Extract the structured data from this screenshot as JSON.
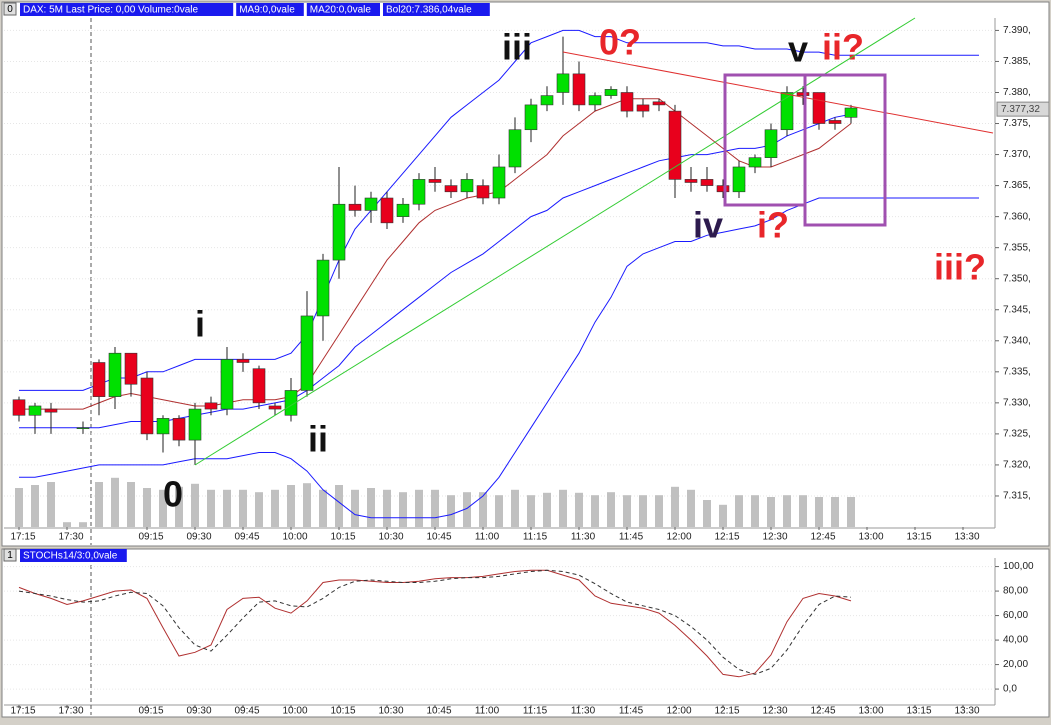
{
  "chart_data": [
    {
      "type": "candlestick",
      "panel_id": "0",
      "header_labels": [
        "DAX: 5M Last Price: 0,00 Volume:0vale",
        "MA9:0,0vale",
        "MA20:0,0vale",
        "Bol20:7.386,04vale"
      ],
      "last_price": {
        "value": 7377.32,
        "label": "7.377,32"
      },
      "categories": [
        "17:15",
        null,
        null,
        "17:30",
        null,
        null,
        null,
        null,
        "09:15",
        null,
        null,
        "09:30",
        null,
        null,
        "09:45",
        null,
        null,
        "10:00",
        null,
        null,
        "10:15",
        null,
        null,
        "10:30",
        null,
        null,
        "10:45",
        null,
        null,
        "11:00",
        null,
        null,
        "11:15",
        null,
        null,
        "11:30",
        null,
        null,
        "11:45",
        null,
        null,
        "12:00",
        null,
        null,
        "12:15",
        null,
        null,
        "12:30",
        null,
        null,
        "12:45",
        null,
        null,
        "13:00",
        null,
        null,
        "13:15",
        null,
        null,
        "13:30",
        null
      ],
      "open": [
        7330.5,
        7328,
        7329,
        null,
        7326,
        7336.5,
        7331,
        7338,
        7334,
        7325,
        7327.5,
        7324,
        7330,
        7329,
        7337,
        7335.5,
        7329.5,
        7328,
        7332,
        7344,
        7353,
        7362,
        7361,
        7363,
        7360,
        7362,
        7366,
        7365,
        7364,
        7365,
        7363,
        7368,
        7374,
        7378,
        7380,
        7383,
        7378,
        7379.5,
        7380,
        7378,
        7378.5,
        7377,
        7366,
        7366,
        7365,
        7364,
        7368,
        7369.5,
        7374,
        7380,
        7380,
        7375.5,
        7376,
        null,
        null,
        null,
        null,
        null,
        null,
        null,
        null
      ],
      "high": [
        7331,
        7330,
        7330,
        null,
        7327,
        7337,
        7339,
        7338,
        7335,
        7328,
        7328,
        7330,
        7331,
        7339,
        7338,
        7336,
        7330,
        7334,
        7348,
        7354,
        7368,
        7365,
        7364,
        7364,
        7363,
        7367,
        7368,
        7366,
        7367,
        7366,
        7370,
        7376,
        7379,
        7381,
        7389,
        7385,
        7380,
        7381,
        7381,
        7379,
        7379,
        7378,
        7368,
        7368,
        7366,
        7369,
        7370,
        7375,
        7381,
        7381,
        7380,
        7376,
        7378,
        null,
        null,
        null,
        null,
        null,
        null,
        null,
        null
      ],
      "low": [
        7327,
        7325,
        7325,
        null,
        7325,
        7328,
        7329,
        7331,
        7324,
        7322,
        7323,
        7320,
        7328,
        7328,
        7335,
        7329,
        7328,
        7327,
        7331,
        7340,
        7350,
        7360,
        7359,
        7358,
        7359,
        7361,
        7364,
        7363,
        7363,
        7362,
        7362,
        7367,
        7372,
        7377,
        7378,
        7377,
        7377,
        7379,
        7376,
        7376,
        7377,
        7363,
        7364,
        7364,
        7363,
        7363,
        7367,
        7368,
        7373,
        7378,
        7374,
        7374,
        7375,
        null,
        null,
        null,
        null,
        null,
        null,
        null,
        null
      ],
      "close": [
        7328,
        7329.5,
        7328.5,
        null,
        7326,
        7331,
        7338,
        7333,
        7325,
        7327.5,
        7324,
        7329,
        7329,
        7337,
        7336.5,
        7330,
        7329,
        7332,
        7344,
        7353,
        7362,
        7361,
        7363,
        7359,
        7362,
        7366,
        7365.5,
        7364,
        7366,
        7363,
        7368,
        7374,
        7378,
        7379.5,
        7383,
        7378,
        7379.5,
        7380.5,
        7377,
        7377,
        7378,
        7366,
        7365.5,
        7365,
        7364,
        7368,
        7369.5,
        7374,
        7380,
        7379.5,
        7375,
        7375,
        7377.5,
        null,
        null,
        null,
        null,
        null,
        null,
        null,
        null
      ],
      "up_color": "#00e000",
      "down_color": "#e8001c",
      "series": [
        {
          "color": "#1a1aff",
          "values": [
            7332,
            7332,
            7332,
            7332,
            7332,
            7333,
            7334,
            7334,
            7335,
            7335,
            7336,
            7337,
            7337,
            7337,
            7337,
            7337,
            7337,
            7338,
            7341,
            7347,
            7353,
            7358,
            7361,
            7364,
            7367,
            7370,
            7373,
            7376,
            7378,
            7380,
            7382,
            7385,
            7388,
            7389,
            7390,
            7390,
            7389,
            7389,
            7388,
            7388,
            7388,
            7388,
            7388,
            7388,
            7387.5,
            7387.5,
            7387,
            7387,
            7387,
            7386.5,
            7386.5,
            7386,
            7386,
            7386,
            7386,
            7386,
            7386,
            7386,
            7386,
            7386,
            7386
          ]
        },
        {
          "color": "#1a1aff",
          "values": [
            7326,
            7326,
            7326,
            7326,
            7326,
            7326,
            7326.5,
            7327,
            7327,
            7327,
            7327.5,
            7328,
            7328.5,
            7329,
            7329,
            7329.5,
            7330,
            7330.5,
            7332,
            7334,
            7336,
            7339,
            7341,
            7343,
            7345,
            7347,
            7349,
            7351,
            7352.5,
            7354,
            7356,
            7358,
            7360,
            7361,
            7363,
            7364,
            7365,
            7366,
            7367,
            7368,
            7369,
            7369.5,
            7370,
            7370,
            7370.5,
            7371,
            7371,
            7371.5,
            7373,
            7374,
            7375,
            7376,
            7376.5,
            null,
            null,
            null,
            null,
            null,
            null,
            null,
            null
          ]
        },
        {
          "color": "#1a1aff",
          "values": [
            7318,
            7318,
            7318.5,
            7319,
            7319.5,
            7320,
            7320,
            7320,
            7320,
            7320,
            7320.5,
            7321,
            7321,
            7321,
            7321.5,
            7322,
            7322,
            7321,
            7319,
            7316,
            7314,
            7312,
            7311.5,
            7311.5,
            7311.5,
            7311.5,
            7311.5,
            7312,
            7313,
            7315,
            7318,
            7322,
            7326,
            7330,
            7334,
            7338,
            7343,
            7347,
            7352,
            7354,
            7355,
            7356,
            7356,
            7357,
            7357.5,
            7358,
            7358.5,
            7359.5,
            7361,
            7362,
            7363,
            7363,
            7363,
            7363,
            7363,
            7363,
            7363,
            7363,
            7363,
            7363,
            7363
          ]
        },
        {
          "color": "#b03030",
          "values": [
            7329,
            7329,
            7329,
            7329,
            7329,
            7330,
            7331,
            7331.5,
            7331,
            7330.5,
            7330,
            7329.5,
            7329.5,
            7330,
            7330.5,
            7330.5,
            7330.5,
            7331,
            7333,
            7337,
            7341,
            7345,
            7349,
            7353,
            7356,
            7359,
            7361,
            7362,
            7363,
            7363.5,
            7364,
            7366,
            7368,
            7370,
            7373,
            7375,
            7377,
            7378,
            7379,
            7379,
            7379,
            7377,
            7375,
            7373,
            7371,
            7369,
            7368,
            7368,
            7369,
            7370,
            7371,
            7373,
            7375,
            null,
            null,
            null,
            null,
            null,
            null,
            null,
            null
          ]
        }
      ],
      "volume": {
        "color": "#c0c0c0",
        "ylim": [
          0,
          100
        ],
        "values": [
          65,
          70,
          75,
          8,
          8,
          75,
          82,
          75,
          65,
          62,
          67,
          72,
          62,
          62,
          62,
          58,
          62,
          70,
          73,
          62,
          70,
          62,
          65,
          62,
          58,
          62,
          62,
          53,
          58,
          58,
          53,
          62,
          53,
          57,
          62,
          57,
          53,
          58,
          53,
          53,
          53,
          67,
          62,
          45,
          37,
          53,
          53,
          50,
          53,
          53,
          50,
          50,
          50,
          null,
          null,
          null,
          null,
          null,
          null,
          null,
          null
        ]
      },
      "ylim": [
        7310,
        7392
      ],
      "yticks": [
        {
          "value": 7390,
          "label": "7.390,"
        },
        {
          "value": 7385,
          "label": "7.385,"
        },
        {
          "value": 7380,
          "label": "7.380,"
        },
        {
          "value": 7375,
          "label": "7.375,"
        },
        {
          "value": 7370,
          "label": "7.370,"
        },
        {
          "value": 7365,
          "label": "7.365,"
        },
        {
          "value": 7360,
          "label": "7.360,"
        },
        {
          "value": 7355,
          "label": "7.355,"
        },
        {
          "value": 7350,
          "label": "7.350,"
        },
        {
          "value": 7345,
          "label": "7.345,"
        },
        {
          "value": 7340,
          "label": "7.340,"
        },
        {
          "value": 7335,
          "label": "7.335,"
        },
        {
          "value": 7330,
          "label": "7.330,"
        },
        {
          "value": 7325,
          "label": "7.325,"
        },
        {
          "value": 7320,
          "label": "7.320,"
        },
        {
          "value": 7315,
          "label": "7.315,"
        }
      ],
      "annotations": [
        {
          "text": "i",
          "color": "#111111"
        },
        {
          "text": "ii",
          "color": "#111111"
        },
        {
          "text": "iii",
          "color": "#111111"
        },
        {
          "text": "0?",
          "color": "#e8262a"
        },
        {
          "text": "0",
          "color": "#111111"
        },
        {
          "text": "iv",
          "color": "#2d1b4e"
        },
        {
          "text": "i?",
          "color": "#e8262a"
        },
        {
          "text": "v",
          "color": "#111111"
        },
        {
          "text": "ii?",
          "color": "#e8262a"
        },
        {
          "text": "iii?",
          "color": "#e8262a"
        }
      ]
    },
    {
      "type": "line",
      "panel_id": "1",
      "header_labels": [
        "STOCHs14/3:0,0vale"
      ],
      "categories": [
        "17:15",
        null,
        null,
        "17:30",
        null,
        null,
        null,
        null,
        "09:15",
        null,
        null,
        "09:30",
        null,
        null,
        "09:45",
        null,
        null,
        "10:00",
        null,
        null,
        "10:15",
        null,
        null,
        "10:30",
        null,
        null,
        "10:45",
        null,
        null,
        "11:00",
        null,
        null,
        "11:15",
        null,
        null,
        "11:30",
        null,
        null,
        "11:45",
        null,
        null,
        "12:00",
        null,
        null,
        "12:15",
        null,
        null,
        "12:30",
        null,
        null,
        "12:45",
        null,
        null,
        "13:00",
        null,
        null,
        "13:15",
        null,
        null,
        "13:30",
        null
      ],
      "series": [
        {
          "color": "#b03030",
          "style": "solid",
          "values": [
            83,
            78,
            74,
            69,
            72,
            76,
            80,
            81,
            74,
            50,
            27,
            30,
            36,
            65,
            74,
            75,
            66,
            62,
            72,
            87,
            89,
            89,
            88,
            87,
            87,
            88,
            90,
            91,
            91,
            92,
            94,
            96,
            97,
            97,
            93,
            89,
            76,
            70,
            68,
            66,
            62,
            52,
            40,
            27,
            12,
            10,
            13,
            28,
            55,
            74,
            78,
            76,
            72,
            null,
            null,
            null,
            null,
            null,
            null,
            null,
            null
          ]
        },
        {
          "color": "#333333",
          "style": "dashed",
          "values": [
            80,
            78,
            76,
            73,
            71,
            72,
            76,
            79,
            78,
            68,
            50,
            36,
            31,
            44,
            58,
            71,
            72,
            68,
            67,
            74,
            83,
            88,
            89,
            88,
            87,
            87,
            88,
            90,
            91,
            91,
            92,
            94,
            96,
            97,
            96,
            93,
            86,
            78,
            71,
            68,
            65,
            60,
            51,
            40,
            26,
            16,
            12,
            17,
            32,
            52,
            69,
            76,
            75,
            null,
            null,
            null,
            null,
            null,
            null,
            null,
            null
          ]
        }
      ],
      "ylim": [
        -13,
        107
      ],
      "yticks": [
        {
          "value": 100,
          "label": "100,00"
        },
        {
          "value": 80,
          "label": "80,00"
        },
        {
          "value": 60,
          "label": "60,00"
        },
        {
          "value": 40,
          "label": "40,00"
        },
        {
          "value": 20,
          "label": "20,00"
        },
        {
          "value": 0,
          "label": "0,0"
        }
      ]
    }
  ]
}
